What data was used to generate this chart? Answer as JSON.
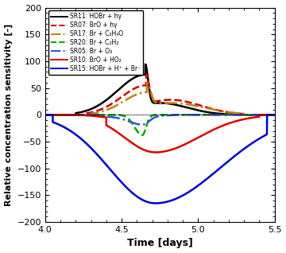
{
  "xlabel": "Time [days]",
  "ylabel": "Relative concentration sensitivity [-]",
  "xlim": [
    4.0,
    5.5
  ],
  "ylim": [
    -200,
    200
  ],
  "xticks": [
    4.0,
    4.5,
    5.0,
    5.5
  ],
  "yticks": [
    -200,
    -150,
    -100,
    -50,
    0,
    50,
    100,
    150,
    200
  ],
  "legend_entries": [
    {
      "label": "SR11: HOBr + hγ",
      "color": "#000000",
      "linestyle": "solid",
      "linewidth": 1.8
    },
    {
      "label": "SR07: BrO + hγ",
      "color": "#cc0000",
      "linestyle": "dashed",
      "linewidth": 1.8
    },
    {
      "label": "SR17: Br + C₂H₄O",
      "color": "#b8860b",
      "linestyle": "dashdot",
      "linewidth": 1.8
    },
    {
      "label": "SR20: Br + C₂H₂",
      "color": "#00aa00",
      "linestyle": "dashed",
      "linewidth": 1.8
    },
    {
      "label": "SR05: Br + O₃",
      "color": "#3355cc",
      "linestyle": "dashdot",
      "linewidth": 1.8
    },
    {
      "label": "SR10: BrO + HO₂",
      "color": "#dd0000",
      "linestyle": "solid",
      "linewidth": 1.8
    },
    {
      "label": "SR15: HOBr + H⁺ + Br⁻",
      "color": "#0000cc",
      "linestyle": "solid",
      "linewidth": 1.8
    }
  ],
  "figsize": [
    3.6,
    3.18
  ],
  "dpi": 100
}
